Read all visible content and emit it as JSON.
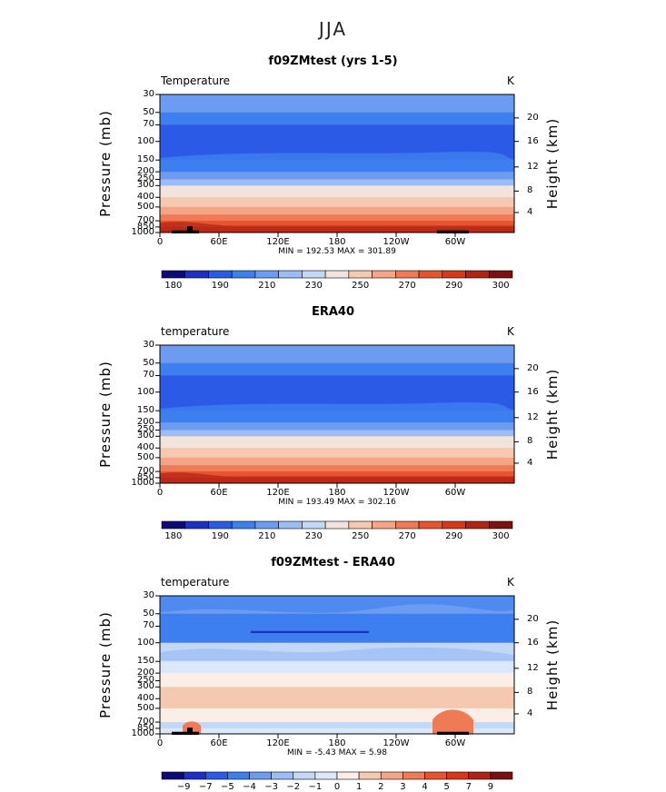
{
  "page_title": "JJA",
  "colors": {
    "temp_bar": [
      "#0b0b78",
      "#1c30c8",
      "#2b5be6",
      "#3e7ff0",
      "#6b9cf2",
      "#9bbcf5",
      "#c3d7f7",
      "#f2e4dc",
      "#f5c8b0",
      "#f3a585",
      "#ee7b55",
      "#e8542f",
      "#d9361c",
      "#b02416",
      "#7d1010"
    ],
    "diff_bar": [
      "#0b0b78",
      "#1c30c8",
      "#2b5be6",
      "#3e7ff0",
      "#6b9cf2",
      "#9bbcf5",
      "#c3d7f7",
      "#dbe7fa",
      "#fbeee6",
      "#f5c8b0",
      "#f3a585",
      "#ee7b55",
      "#e8542f",
      "#d9361c",
      "#b02416",
      "#7d1010"
    ]
  },
  "chart_data": [
    {
      "type": "heatmap",
      "title": "f09ZMtest (yrs 1-5)",
      "left_label": "Temperature",
      "units": "K",
      "min_max": "MIN = 192.53  MAX = 301.89",
      "ylabel": "Pressure (mb)",
      "ylabel_right": "Height (km)",
      "y_ticks": [
        "30",
        "50",
        "70",
        "100",
        "150",
        "200",
        "250",
        "300",
        "400",
        "500",
        "700",
        "850",
        "1000"
      ],
      "y_ticks_right": [
        "20",
        "16",
        "12",
        "8",
        "4"
      ],
      "x_ticks": [
        "0",
        "60E",
        "120E",
        "180",
        "120W",
        "60W"
      ],
      "colorbar_labels": [
        "180",
        "190",
        "210",
        "230",
        "250",
        "270",
        "290",
        "300"
      ],
      "bands": [
        {
          "level": "30-50",
          "color": "#6b9cf2"
        },
        {
          "level": "50-70",
          "color": "#3e7ff0"
        },
        {
          "level": "70-150",
          "color": "#2b5be6"
        },
        {
          "level": "150-200",
          "color": "#3e7ff0"
        },
        {
          "level": "200-250",
          "color": "#6b9cf2"
        },
        {
          "level": "250-300",
          "color": "#9bbcf5"
        },
        {
          "level": "300-400",
          "color": "#f2e4dc"
        },
        {
          "level": "400-500",
          "color": "#f5c8b0"
        },
        {
          "level": "500-600",
          "color": "#f3a585"
        },
        {
          "level": "600-700",
          "color": "#ee7b55"
        },
        {
          "level": "700-850",
          "color": "#e8542f"
        },
        {
          "level": "850-1000",
          "color": "#d9361c"
        }
      ]
    },
    {
      "type": "heatmap",
      "title": "ERA40",
      "left_label": "temperature",
      "units": "K",
      "min_max": "MIN = 193.49  MAX = 302.16",
      "ylabel": "Pressure (mb)",
      "ylabel_right": "Height (km)",
      "y_ticks": [
        "30",
        "50",
        "70",
        "100",
        "150",
        "200",
        "250",
        "300",
        "400",
        "500",
        "700",
        "850",
        "1000"
      ],
      "y_ticks_right": [
        "20",
        "16",
        "12",
        "8",
        "4"
      ],
      "x_ticks": [
        "0",
        "60E",
        "120E",
        "180",
        "120W",
        "60W"
      ],
      "colorbar_labels": [
        "180",
        "190",
        "210",
        "230",
        "250",
        "270",
        "290",
        "300"
      ],
      "bands": [
        {
          "level": "30-50",
          "color": "#6b9cf2"
        },
        {
          "level": "50-70",
          "color": "#3e7ff0"
        },
        {
          "level": "70-150",
          "color": "#2b5be6"
        },
        {
          "level": "150-200",
          "color": "#3e7ff0"
        },
        {
          "level": "200-250",
          "color": "#6b9cf2"
        },
        {
          "level": "250-300",
          "color": "#9bbcf5"
        },
        {
          "level": "300-400",
          "color": "#f2e4dc"
        },
        {
          "level": "400-500",
          "color": "#f5c8b0"
        },
        {
          "level": "500-600",
          "color": "#f3a585"
        },
        {
          "level": "600-700",
          "color": "#ee7b55"
        },
        {
          "level": "700-850",
          "color": "#e8542f"
        },
        {
          "level": "850-1000",
          "color": "#d9361c"
        }
      ]
    },
    {
      "type": "heatmap",
      "title": "f09ZMtest - ERA40",
      "left_label": "temperature",
      "units": "K",
      "min_max": "MIN =  -5.43   MAX =   5.98",
      "ylabel": "Pressure (mb)",
      "ylabel_right": "Height (km)",
      "y_ticks": [
        "30",
        "50",
        "70",
        "100",
        "150",
        "200",
        "250",
        "300",
        "400",
        "500",
        "700",
        "850",
        "1000"
      ],
      "y_ticks_right": [
        "20",
        "16",
        "12",
        "8",
        "4"
      ],
      "x_ticks": [
        "0",
        "60E",
        "120E",
        "180",
        "120W",
        "60W"
      ],
      "colorbar_labels": [
        "−9",
        "−7",
        "−5",
        "−4",
        "−3",
        "−2",
        "−1",
        "0",
        "1",
        "2",
        "3",
        "4",
        "5",
        "7",
        "9"
      ],
      "bands": [
        {
          "level": "30-50",
          "color": "#6b9cf2"
        },
        {
          "level": "50-70",
          "color": "#3e7ff0"
        },
        {
          "level": "70-100",
          "color": "#3e7ff0"
        },
        {
          "level": "100-150",
          "color": "#c3d7f7"
        },
        {
          "level": "150-200",
          "color": "#dbe7fa"
        },
        {
          "level": "200-300",
          "color": "#fbeee6"
        },
        {
          "level": "300-500",
          "color": "#f5c8b0"
        },
        {
          "level": "500-700",
          "color": "#fbeee6"
        },
        {
          "level": "700-850",
          "color": "#c3d7f7"
        },
        {
          "level": "850-1000",
          "color": "#dbe7fa"
        }
      ]
    }
  ]
}
